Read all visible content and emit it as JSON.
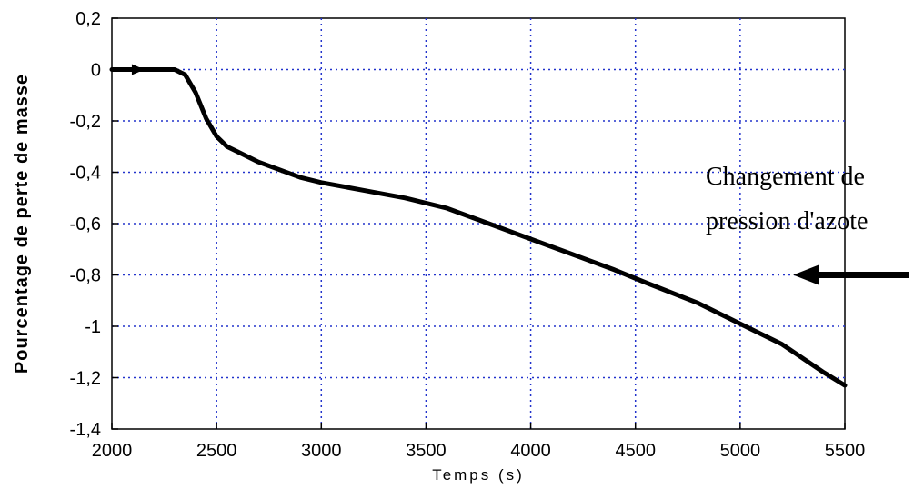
{
  "chart_data": {
    "type": "line",
    "xlabel": "Temps (s)",
    "ylabel": "Pourcentage de perte de masse",
    "xlim": [
      2000,
      5500
    ],
    "ylim": [
      -1.4,
      0.2
    ],
    "x_ticks": [
      2000,
      2500,
      3000,
      3500,
      4000,
      4500,
      5000,
      5500
    ],
    "x_tick_labels": [
      "2000",
      "2500",
      "3000",
      "3500",
      "4000",
      "4500",
      "5000",
      "5500"
    ],
    "y_ticks": [
      0.2,
      0,
      -0.2,
      -0.4,
      -0.6,
      -0.8,
      -1,
      -1.2,
      -1.4
    ],
    "y_tick_labels": [
      "0,2",
      "0",
      "-0,2",
      "-0,4",
      "-0,6",
      "-0,8",
      "-1",
      "-1,2",
      "-1,4"
    ],
    "grid": true,
    "series": [
      {
        "x": [
          2000,
          2100,
          2200,
          2300,
          2350,
          2400,
          2450,
          2500,
          2550,
          2600,
          2700,
          2800,
          2900,
          3000,
          3200,
          3400,
          3600,
          3800,
          4000,
          4200,
          4400,
          4550,
          4800,
          5000,
          5200,
          5400,
          5500
        ],
        "y": [
          0.0,
          0.0,
          0.0,
          0.0,
          -0.02,
          -0.09,
          -0.19,
          -0.26,
          -0.3,
          -0.32,
          -0.36,
          -0.39,
          -0.42,
          -0.44,
          -0.47,
          -0.5,
          -0.54,
          -0.6,
          -0.66,
          -0.72,
          -0.78,
          -0.83,
          -0.91,
          -0.99,
          -1.07,
          -1.18,
          -1.23
        ]
      }
    ],
    "color": "#000000",
    "annotation": {
      "lines": [
        "Changement de",
        "pression d'azote"
      ],
      "arrow_target": [
        4580,
        -0.8
      ]
    }
  }
}
